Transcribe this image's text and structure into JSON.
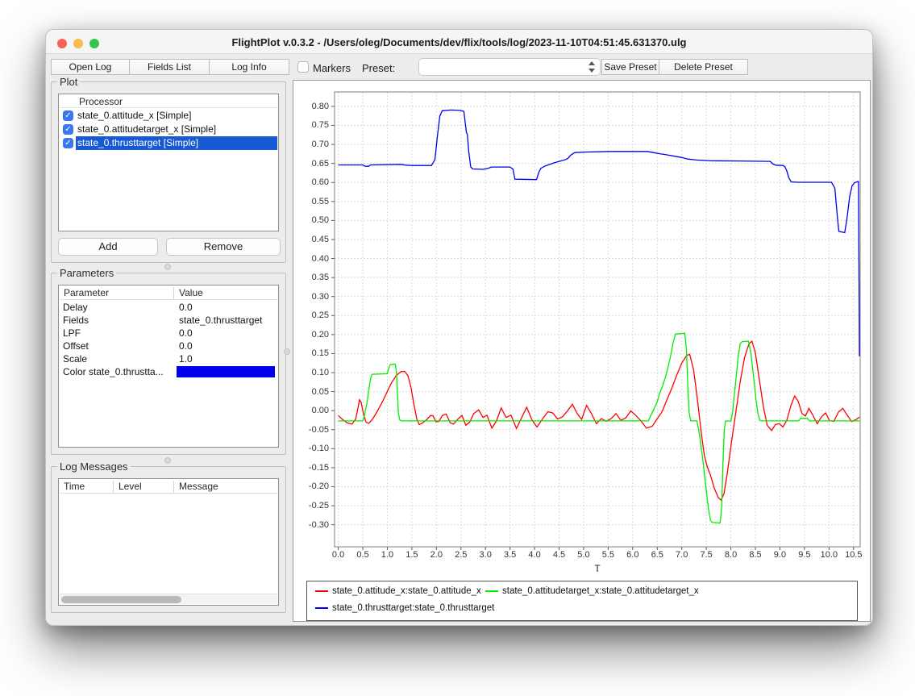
{
  "window": {
    "title": "FlightPlot v.0.3.2 - /Users/oleg/Documents/dev/flix/tools/log/2023-11-10T04:51:45.631370.ulg"
  },
  "toolbar": {
    "open_log": "Open Log",
    "fields_list": "Fields List",
    "log_info": "Log Info",
    "markers": "Markers",
    "preset_label": "Preset:",
    "preset_value": "",
    "save_preset": "Save Preset",
    "delete_preset": "Delete Preset"
  },
  "plot_panel": {
    "title": "Plot",
    "column_header": "Processor",
    "items": [
      {
        "label": "state_0.attitude_x [Simple]",
        "checked": true,
        "selected": false
      },
      {
        "label": "state_0.attitudetarget_x [Simple]",
        "checked": true,
        "selected": false
      },
      {
        "label": "state_0.thrusttarget [Simple]",
        "checked": true,
        "selected": true
      }
    ],
    "add_label": "Add",
    "remove_label": "Remove",
    "check_glyph": "✓"
  },
  "parameters_panel": {
    "title": "Parameters",
    "col_parameter": "Parameter",
    "col_value": "Value",
    "rows": [
      {
        "name": "Delay",
        "value": "0.0"
      },
      {
        "name": "Fields",
        "value": "state_0.thrusttarget"
      },
      {
        "name": "LPF",
        "value": "0.0"
      },
      {
        "name": "Offset",
        "value": "0.0"
      },
      {
        "name": "Scale",
        "value": "1.0"
      }
    ],
    "color_row": {
      "name": "Color state_0.thrustta...",
      "color": "#0000ee"
    }
  },
  "log_panel": {
    "title": "Log Messages",
    "col_time": "Time",
    "col_level": "Level",
    "col_message": "Message",
    "rows": []
  },
  "chart_data": {
    "type": "line",
    "title": "",
    "xlabel": "T",
    "ylabel": "",
    "grid": true,
    "legend_position": "bottom",
    "xlim": [
      -0.075,
      10.635
    ],
    "ylim": [
      -0.358,
      0.838
    ],
    "x_ticks": [
      0,
      0.5,
      1,
      1.5,
      2,
      2.5,
      3,
      3.5,
      4,
      4.5,
      5,
      5.5,
      6,
      6.5,
      7,
      7.5,
      8,
      8.5,
      9,
      9.5,
      10,
      10.5
    ],
    "y_ticks": [
      0.8,
      0.75,
      0.7,
      0.65,
      0.6,
      0.55,
      0.5,
      0.45,
      0.4,
      0.35,
      0.3,
      0.25,
      0.2,
      0.15,
      0.1,
      0.05,
      0.0,
      -0.05,
      -0.1,
      -0.15,
      -0.2,
      -0.25,
      -0.3
    ],
    "series": [
      {
        "name": "state_0.attitude_x:state_0.attitude_x",
        "color": "#ff0000",
        "points": [
          [
            0,
            -0.013
          ],
          [
            0.08,
            -0.022
          ],
          [
            0.18,
            -0.032
          ],
          [
            0.28,
            -0.0355
          ],
          [
            0.355,
            -0.022
          ],
          [
            0.41,
            0.012
          ],
          [
            0.435,
            0.0285
          ],
          [
            0.465,
            0.022
          ],
          [
            0.52,
            -0.012
          ],
          [
            0.565,
            -0.03
          ],
          [
            0.62,
            -0.0335
          ],
          [
            0.7,
            -0.022
          ],
          [
            0.78,
            -0.005
          ],
          [
            0.88,
            0.018
          ],
          [
            0.98,
            0.045
          ],
          [
            1.08,
            0.072
          ],
          [
            1.18,
            0.092
          ],
          [
            1.28,
            0.1025
          ],
          [
            1.35,
            0.1035
          ],
          [
            1.42,
            0.092
          ],
          [
            1.48,
            0.062
          ],
          [
            1.54,
            0.018
          ],
          [
            1.6,
            -0.022
          ],
          [
            1.65,
            -0.0365
          ],
          [
            1.72,
            -0.032
          ],
          [
            1.8,
            -0.024
          ],
          [
            1.88,
            -0.013
          ],
          [
            1.93,
            -0.0135
          ],
          [
            1.99,
            -0.029
          ],
          [
            2.05,
            -0.0285
          ],
          [
            2.12,
            -0.013
          ],
          [
            2.2,
            -0.009
          ],
          [
            2.28,
            -0.032
          ],
          [
            2.35,
            -0.0355
          ],
          [
            2.44,
            -0.022
          ],
          [
            2.52,
            -0.0125
          ],
          [
            2.6,
            -0.0385
          ],
          [
            2.68,
            -0.03
          ],
          [
            2.76,
            -0.008
          ],
          [
            2.86,
            0.002
          ],
          [
            2.95,
            -0.018
          ],
          [
            3.03,
            -0.012
          ],
          [
            3.13,
            -0.046
          ],
          [
            3.22,
            -0.028
          ],
          [
            3.32,
            0.007
          ],
          [
            3.42,
            -0.018
          ],
          [
            3.52,
            -0.012
          ],
          [
            3.63,
            -0.047
          ],
          [
            3.74,
            -0.018
          ],
          [
            3.84,
            0.009
          ],
          [
            3.95,
            -0.025
          ],
          [
            4.05,
            -0.043
          ],
          [
            4.16,
            -0.022
          ],
          [
            4.27,
            -0.003
          ],
          [
            4.37,
            -0.006
          ],
          [
            4.47,
            -0.022
          ],
          [
            4.57,
            -0.016
          ],
          [
            4.67,
            -0.001
          ],
          [
            4.77,
            0.017
          ],
          [
            4.87,
            -0.008
          ],
          [
            4.96,
            -0.023
          ],
          [
            5.06,
            0.014
          ],
          [
            5.16,
            -0.008
          ],
          [
            5.26,
            -0.0345
          ],
          [
            5.36,
            -0.021
          ],
          [
            5.46,
            -0.028
          ],
          [
            5.56,
            -0.021
          ],
          [
            5.66,
            -0.008
          ],
          [
            5.76,
            -0.0255
          ],
          [
            5.86,
            -0.019
          ],
          [
            5.96,
            -0.001
          ],
          [
            6.06,
            -0.012
          ],
          [
            6.16,
            -0.026
          ],
          [
            6.28,
            -0.046
          ],
          [
            6.4,
            -0.041
          ],
          [
            6.5,
            -0.021
          ],
          [
            6.6,
            -0.002
          ],
          [
            6.7,
            0.029
          ],
          [
            6.8,
            0.06
          ],
          [
            6.9,
            0.094
          ],
          [
            7.0,
            0.125
          ],
          [
            7.1,
            0.145
          ],
          [
            7.16,
            0.148
          ],
          [
            7.24,
            0.108
          ],
          [
            7.32,
            0.028
          ],
          [
            7.4,
            -0.062
          ],
          [
            7.46,
            -0.118
          ],
          [
            7.52,
            -0.148
          ],
          [
            7.58,
            -0.168
          ],
          [
            7.66,
            -0.203
          ],
          [
            7.74,
            -0.228
          ],
          [
            7.8,
            -0.2355
          ],
          [
            7.86,
            -0.218
          ],
          [
            7.93,
            -0.162
          ],
          [
            8.01,
            -0.085
          ],
          [
            8.1,
            -0.005
          ],
          [
            8.19,
            0.076
          ],
          [
            8.28,
            0.14
          ],
          [
            8.37,
            0.176
          ],
          [
            8.43,
            0.1825
          ],
          [
            8.5,
            0.152
          ],
          [
            8.58,
            0.082
          ],
          [
            8.66,
            0.012
          ],
          [
            8.74,
            -0.038
          ],
          [
            8.83,
            -0.0525
          ],
          [
            8.91,
            -0.036
          ],
          [
            8.99,
            -0.0345
          ],
          [
            9.06,
            -0.043
          ],
          [
            9.14,
            -0.025
          ],
          [
            9.22,
            0.012
          ],
          [
            9.3,
            0.0385
          ],
          [
            9.37,
            0.025
          ],
          [
            9.45,
            -0.008
          ],
          [
            9.52,
            -0.014
          ],
          [
            9.59,
            0.006
          ],
          [
            9.67,
            -0.012
          ],
          [
            9.76,
            -0.0345
          ],
          [
            9.85,
            -0.016
          ],
          [
            9.93,
            -0.006
          ],
          [
            10.01,
            -0.0265
          ],
          [
            10.1,
            -0.028
          ],
          [
            10.19,
            -0.004
          ],
          [
            10.28,
            0.006
          ],
          [
            10.37,
            -0.012
          ],
          [
            10.46,
            -0.0285
          ],
          [
            10.55,
            -0.0235
          ],
          [
            10.62,
            -0.017
          ]
        ]
      },
      {
        "name": "state_0.attitudetarget_x:state_0.attitudetarget_x",
        "color": "#00ee00",
        "points": [
          [
            0,
            -0.027
          ],
          [
            0.5,
            -0.027
          ],
          [
            0.535,
            -0.012
          ],
          [
            0.56,
            0.005
          ],
          [
            0.585,
            0.02
          ],
          [
            0.61,
            0.042
          ],
          [
            0.64,
            0.068
          ],
          [
            0.665,
            0.088
          ],
          [
            0.69,
            0.0955
          ],
          [
            1.0,
            0.097
          ],
          [
            1.03,
            0.112
          ],
          [
            1.06,
            0.121
          ],
          [
            1.16,
            0.1225
          ],
          [
            1.185,
            0.105
          ],
          [
            1.205,
            0.05
          ],
          [
            1.225,
            -0.005
          ],
          [
            1.25,
            -0.0235
          ],
          [
            1.28,
            -0.027
          ],
          [
            6.32,
            -0.027
          ],
          [
            6.37,
            -0.012
          ],
          [
            6.41,
            -0.002
          ],
          [
            6.46,
            0.012
          ],
          [
            6.5,
            0.0235
          ],
          [
            6.55,
            0.046
          ],
          [
            6.6,
            0.062
          ],
          [
            6.66,
            0.085
          ],
          [
            6.72,
            0.114
          ],
          [
            6.78,
            0.1485
          ],
          [
            6.83,
            0.1825
          ],
          [
            6.87,
            0.2015
          ],
          [
            7.06,
            0.2035
          ],
          [
            7.095,
            0.16
          ],
          [
            7.125,
            0.06
          ],
          [
            7.15,
            -0.005
          ],
          [
            7.18,
            -0.0265
          ],
          [
            7.31,
            -0.027
          ],
          [
            7.36,
            -0.062
          ],
          [
            7.42,
            -0.12
          ],
          [
            7.48,
            -0.188
          ],
          [
            7.54,
            -0.255
          ],
          [
            7.585,
            -0.289
          ],
          [
            7.62,
            -0.294
          ],
          [
            7.78,
            -0.2955
          ],
          [
            7.815,
            -0.25
          ],
          [
            7.84,
            -0.135
          ],
          [
            7.865,
            -0.05
          ],
          [
            7.89,
            -0.0275
          ],
          [
            8.0,
            -0.0275
          ],
          [
            8.035,
            -0.005
          ],
          [
            8.07,
            0.04
          ],
          [
            8.11,
            0.09
          ],
          [
            8.15,
            0.143
          ],
          [
            8.19,
            0.176
          ],
          [
            8.23,
            0.1815
          ],
          [
            8.36,
            0.1825
          ],
          [
            8.41,
            0.15
          ],
          [
            8.46,
            0.092
          ],
          [
            8.51,
            0.032
          ],
          [
            8.55,
            -0.008
          ],
          [
            8.59,
            -0.0255
          ],
          [
            8.63,
            -0.027
          ],
          [
            9.38,
            -0.027
          ],
          [
            9.42,
            -0.0205
          ],
          [
            9.56,
            -0.0205
          ],
          [
            9.6,
            -0.027
          ],
          [
            10.62,
            -0.027
          ]
        ]
      },
      {
        "name": "state_0.thrusttarget:state_0.thrusttarget",
        "color": "#0000ee",
        "points": [
          [
            0,
            0.646
          ],
          [
            0.5,
            0.646
          ],
          [
            0.55,
            0.6425
          ],
          [
            0.62,
            0.6425
          ],
          [
            0.66,
            0.646
          ],
          [
            1.28,
            0.6475
          ],
          [
            1.38,
            0.6455
          ],
          [
            1.52,
            0.6445
          ],
          [
            1.9,
            0.6445
          ],
          [
            1.97,
            0.66
          ],
          [
            2.02,
            0.72
          ],
          [
            2.07,
            0.775
          ],
          [
            2.12,
            0.7885
          ],
          [
            2.3,
            0.7905
          ],
          [
            2.48,
            0.7895
          ],
          [
            2.56,
            0.787
          ],
          [
            2.59,
            0.755
          ],
          [
            2.61,
            0.732
          ],
          [
            2.63,
            0.727
          ],
          [
            2.66,
            0.68
          ],
          [
            2.7,
            0.641
          ],
          [
            2.74,
            0.6355
          ],
          [
            2.95,
            0.6345
          ],
          [
            3.05,
            0.637
          ],
          [
            3.12,
            0.6405
          ],
          [
            3.5,
            0.6405
          ],
          [
            3.56,
            0.635
          ],
          [
            3.6,
            0.6085
          ],
          [
            4.04,
            0.6075
          ],
          [
            4.09,
            0.628
          ],
          [
            4.13,
            0.6375
          ],
          [
            4.22,
            0.6435
          ],
          [
            4.35,
            0.6495
          ],
          [
            4.5,
            0.6555
          ],
          [
            4.62,
            0.6595
          ],
          [
            4.68,
            0.6635
          ],
          [
            4.74,
            0.672
          ],
          [
            4.82,
            0.6785
          ],
          [
            5.05,
            0.68
          ],
          [
            5.55,
            0.6815
          ],
          [
            6.3,
            0.6815
          ],
          [
            6.42,
            0.6785
          ],
          [
            6.55,
            0.6755
          ],
          [
            6.7,
            0.6725
          ],
          [
            6.85,
            0.669
          ],
          [
            7.0,
            0.6655
          ],
          [
            7.12,
            0.6615
          ],
          [
            7.3,
            0.659
          ],
          [
            7.6,
            0.657
          ],
          [
            8.15,
            0.6565
          ],
          [
            8.8,
            0.6555
          ],
          [
            8.86,
            0.6485
          ],
          [
            8.92,
            0.6455
          ],
          [
            9.06,
            0.6445
          ],
          [
            9.1,
            0.6415
          ],
          [
            9.14,
            0.6305
          ],
          [
            9.18,
            0.6125
          ],
          [
            9.23,
            0.6015
          ],
          [
            9.35,
            0.6005
          ],
          [
            10.05,
            0.6005
          ],
          [
            10.12,
            0.585
          ],
          [
            10.17,
            0.51
          ],
          [
            10.2,
            0.4715
          ],
          [
            10.32,
            0.468
          ],
          [
            10.36,
            0.5
          ],
          [
            10.42,
            0.562
          ],
          [
            10.47,
            0.5915
          ],
          [
            10.52,
            0.599
          ],
          [
            10.58,
            0.6025
          ],
          [
            10.6,
            0.6025
          ],
          [
            10.62,
            0.143
          ]
        ]
      }
    ]
  }
}
